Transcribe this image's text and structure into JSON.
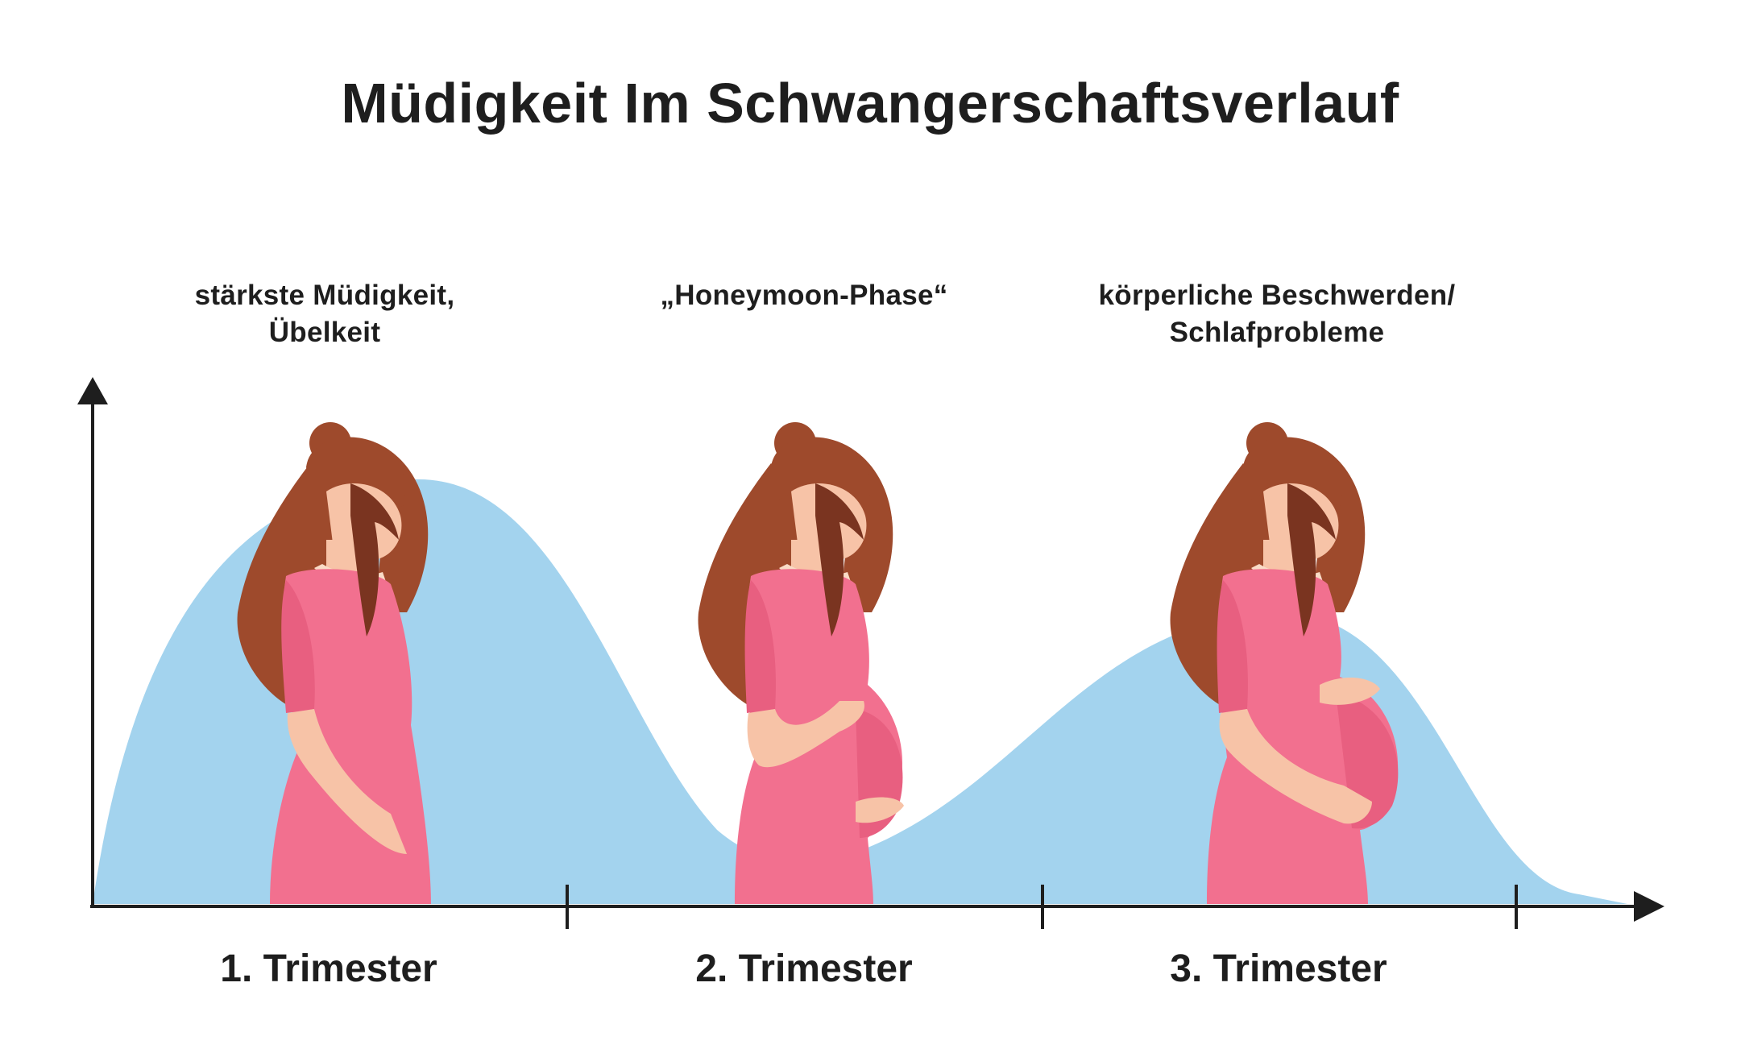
{
  "title": "Müdigkeit Im Schwangerschaftsverlauf",
  "annotations": [
    {
      "line1": "stärkste Müdigkeit,",
      "line2": "Übelkeit"
    },
    {
      "line1": "„Honeymoon-Phase“",
      "line2": ""
    },
    {
      "line1": "körperliche Beschwerden/",
      "line2": "Schlafprobleme"
    }
  ],
  "trimesters": [
    "1. Trimester",
    "2. Trimester",
    "3. Trimester"
  ],
  "colors": {
    "curve": "#a3d3ee",
    "axis": "#1e1e1e",
    "dress": "#f2708f",
    "dress_dark": "#e85f80",
    "skin": "#f7c3a7",
    "hair": "#9e4a2c",
    "hair_dark": "#7a3420",
    "collar": "#f9dcc7"
  },
  "illustrations": [
    {
      "name": "woman-trimester-1",
      "belly": "none"
    },
    {
      "name": "woman-trimester-2",
      "belly": "medium"
    },
    {
      "name": "woman-trimester-3",
      "belly": "large"
    }
  ]
}
